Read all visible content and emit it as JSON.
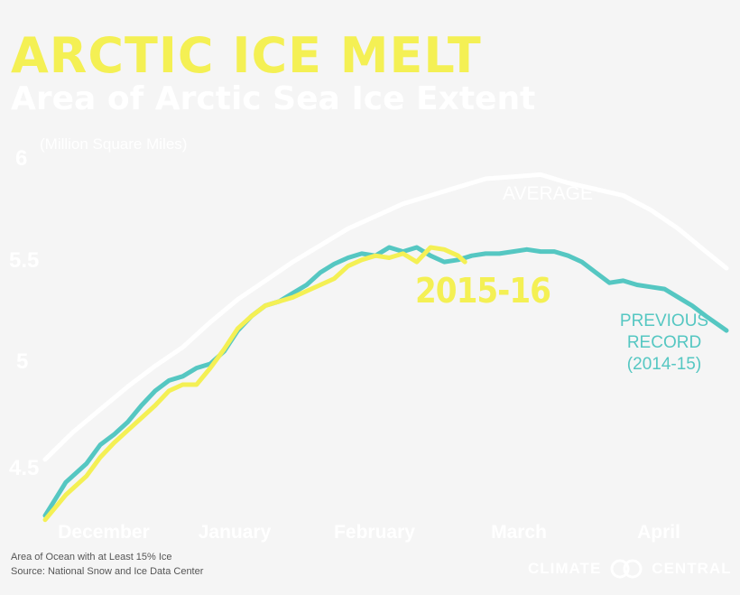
{
  "header": {
    "title": "ARCTIC ICE MELT",
    "subtitle": "Area of Arctic Sea Ice Extent"
  },
  "footer": {
    "note": "Area of Ocean with at Least 15% Ice",
    "source": "Source: National Snow and Ice Data Center"
  },
  "logo": {
    "left": "CLIMATE",
    "right": "CENTRAL"
  },
  "colors": {
    "background": "#f5f5f5",
    "average": "#ffffff",
    "previous": "#55c7c2",
    "current": "#f4f054"
  },
  "chart_data": {
    "type": "line",
    "title": "ARCTIC ICE MELT",
    "subtitle": "Area of Arctic Sea Ice Extent",
    "ylabel": "(Million Square Miles)",
    "y_tick_labels": [
      "6",
      "5.5",
      "5",
      "4.5"
    ],
    "y_tick_values": [
      6.0,
      5.5,
      5.0,
      4.5
    ],
    "ylim": [
      4.3,
      6.05
    ],
    "x_tick_labels": [
      "December",
      "January",
      "February",
      "March",
      "April"
    ],
    "x_tick_values": [
      1,
      2,
      3,
      4,
      5
    ],
    "xlim": [
      0.6,
      5.55
    ],
    "series": [
      {
        "name": "AVERAGE",
        "label": "AVERAGE",
        "color": "#ffffff",
        "x": [
          0.6,
          0.8,
          1.0,
          1.2,
          1.4,
          1.6,
          1.8,
          2.0,
          2.2,
          2.4,
          2.6,
          2.8,
          3.0,
          3.2,
          3.4,
          3.6,
          3.8,
          4.0,
          4.2,
          4.4,
          4.6,
          4.8,
          5.0,
          5.2,
          5.4,
          5.55
        ],
        "values": [
          4.6,
          4.73,
          4.84,
          4.95,
          5.05,
          5.14,
          5.26,
          5.37,
          5.46,
          5.55,
          5.63,
          5.71,
          5.77,
          5.83,
          5.87,
          5.91,
          5.95,
          5.96,
          5.97,
          5.93,
          5.9,
          5.87,
          5.8,
          5.71,
          5.6,
          5.52
        ]
      },
      {
        "name": "PREVIOUS RECORD (2014-15)",
        "label_lines": [
          "PREVIOUS",
          "RECORD",
          "(2014-15)"
        ],
        "color": "#55c7c2",
        "x": [
          0.6,
          0.75,
          0.9,
          1.0,
          1.1,
          1.2,
          1.3,
          1.4,
          1.5,
          1.6,
          1.7,
          1.8,
          1.9,
          2.0,
          2.1,
          2.2,
          2.3,
          2.4,
          2.5,
          2.6,
          2.7,
          2.8,
          2.9,
          3.0,
          3.1,
          3.2,
          3.3,
          3.4,
          3.5,
          3.6,
          3.7,
          3.8,
          3.9,
          4.0,
          4.1,
          4.2,
          4.3,
          4.4,
          4.5,
          4.6,
          4.7,
          4.8,
          4.9,
          5.0,
          5.1,
          5.2,
          5.3,
          5.4,
          5.55
        ],
        "values": [
          4.33,
          4.49,
          4.58,
          4.67,
          4.72,
          4.78,
          4.86,
          4.93,
          4.98,
          5.0,
          5.04,
          5.06,
          5.12,
          5.22,
          5.29,
          5.34,
          5.36,
          5.4,
          5.44,
          5.5,
          5.54,
          5.57,
          5.59,
          5.58,
          5.62,
          5.6,
          5.62,
          5.58,
          5.55,
          5.56,
          5.58,
          5.59,
          5.59,
          5.6,
          5.61,
          5.6,
          5.6,
          5.58,
          5.55,
          5.5,
          5.45,
          5.46,
          5.44,
          5.43,
          5.42,
          5.38,
          5.34,
          5.29,
          5.22
        ]
      },
      {
        "name": "2015-16",
        "label": "2015-16",
        "color": "#f4f054",
        "x": [
          0.6,
          0.75,
          0.9,
          1.0,
          1.1,
          1.2,
          1.3,
          1.4,
          1.5,
          1.6,
          1.7,
          1.8,
          1.9,
          2.0,
          2.1,
          2.2,
          2.3,
          2.4,
          2.5,
          2.6,
          2.7,
          2.8,
          2.9,
          3.0,
          3.1,
          3.2,
          3.3,
          3.4,
          3.5,
          3.6,
          3.65
        ],
        "values": [
          4.31,
          4.43,
          4.52,
          4.61,
          4.68,
          4.74,
          4.8,
          4.86,
          4.93,
          4.96,
          4.96,
          5.04,
          5.13,
          5.23,
          5.29,
          5.34,
          5.36,
          5.38,
          5.41,
          5.44,
          5.47,
          5.53,
          5.56,
          5.58,
          5.57,
          5.59,
          5.55,
          5.62,
          5.61,
          5.58,
          5.55
        ]
      }
    ]
  }
}
